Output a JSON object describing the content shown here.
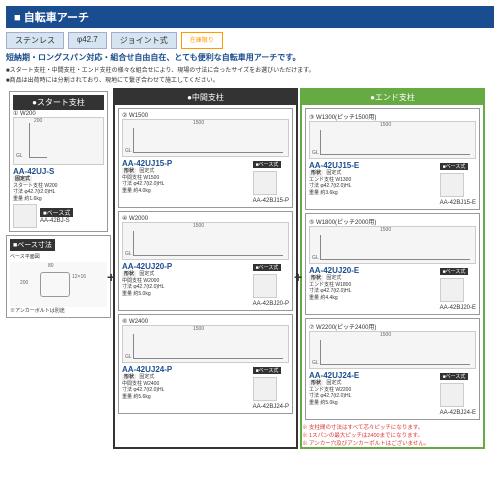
{
  "title": "■ 自転車アーチ",
  "tags": [
    "ステンレス",
    "φ42.7",
    "ジョイント式"
  ],
  "tag_order": "在庫限り",
  "lead": "短納期・ロングスパン対応・組合せ自由自在、とても便利な自転車用アーチです。",
  "sub1": "■スタート支柱・中間支柱・エンド支柱の様々な組合せにより、現場の寸法に合ったサイズをお選びいただけます。",
  "sub2": "■商品は出荷時には分割されており、現地にて繋ぎ合わせて施工してください。",
  "col1": {
    "h": "●スタート支柱",
    "num": "① W200",
    "model": "AA-42UJ-S",
    "type": "固定式",
    "spec": "スタート支柱 W200\n寸法 φ42.7(t2.0)HL\n重量 約1.6kg",
    "base": "■ベース式",
    "base_model": "AA-42BJ-S"
  },
  "col2": {
    "h": "●中間支柱",
    "items": [
      {
        "num": "② W1500",
        "model": "AA-42UJ15-P",
        "type": "固定式",
        "spec": "中間支柱 W1500\n寸法 φ42.7(t2.0)HL\n重量 約4.0kg",
        "base": "■ベース式",
        "base_model": "AA-42BJ15-P"
      },
      {
        "num": "④ W2000",
        "model": "AA-42UJ20-P",
        "type": "固定式",
        "spec": "中間支柱 W2000\n寸法 φ42.7(t2.0)HL\n重量 約5.0kg",
        "base": "■ベース式",
        "base_model": "AA-42BJ20-P"
      },
      {
        "num": "⑥ W2400",
        "model": "AA-42UJ24-P",
        "type": "固定式",
        "spec": "中間支柱 W2400\n寸法 φ42.7(t2.0)HL\n重量 約5.6kg",
        "base": "■ベース式",
        "base_model": "AA-42BJ24-P"
      }
    ]
  },
  "col3": {
    "h": "●エンド支柱",
    "items": [
      {
        "num": "③ W1300(ピッチ1500用)",
        "model": "AA-42UJ15-E",
        "type": "固定式",
        "spec": "エンド支柱 W1300\n寸法 φ42.7(t2.0)HL\n重量 約3.6kg",
        "base": "■ベース式",
        "base_model": "AA-42BJ15-E"
      },
      {
        "num": "⑤ W1800(ピッチ2000用)",
        "model": "AA-42UJ20-E",
        "type": "固定式",
        "spec": "エンド支柱 W1800\n寸法 φ42.7(t2.0)HL\n重量 約4.4kg",
        "base": "■ベース式",
        "base_model": "AA-42BJ20-E"
      },
      {
        "num": "⑦ W2200(ピッチ2400用)",
        "model": "AA-42UJ24-E",
        "type": "固定式",
        "spec": "エンド支柱 W2200\n寸法 φ42.7(t2.0)HL\n重量 約5.0kg",
        "base": "■ベース式",
        "base_model": "AA-42BJ24-E"
      }
    ]
  },
  "dim": {
    "h": "■ベース寸法",
    "lbl": "ベース平面図",
    "note": "※アンカーボルトは別途"
  },
  "notes": [
    "※ 支柱間の寸法はすべて芯々ピッチになります。",
    "※ 1スパンの最大ピッチは2400までになります。",
    "※ アンカー穴及びアンカーボルトはございません。"
  ]
}
